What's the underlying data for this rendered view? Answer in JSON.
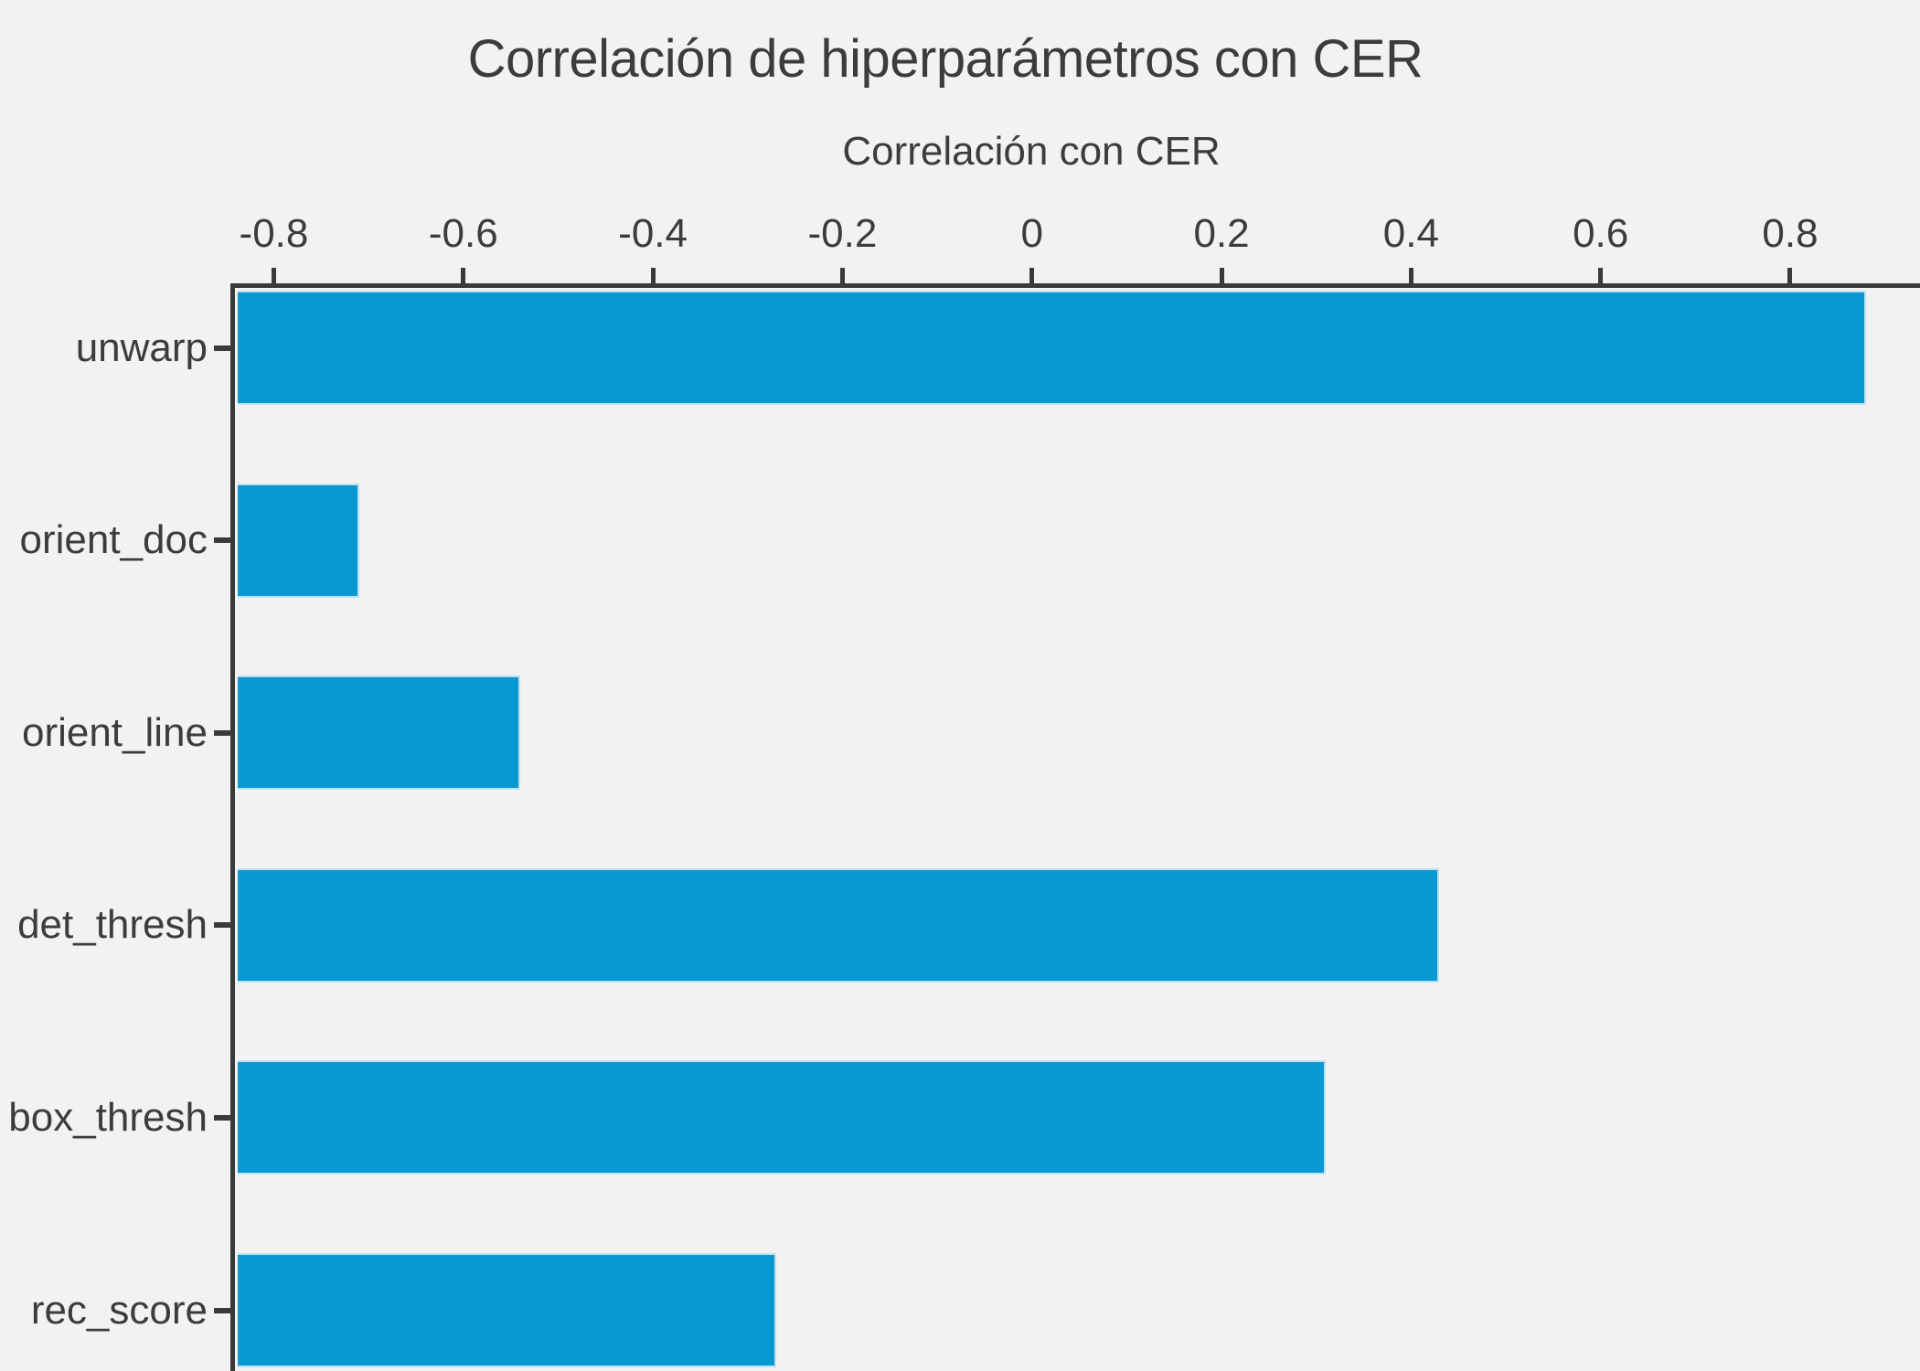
{
  "colors": {
    "background": "#f2f2f2",
    "bar": "#0899d3",
    "bar_edge": "#bee1f2",
    "spine": "#3a3a3a",
    "text": "#3c3c3c"
  },
  "chart_data": {
    "type": "bar",
    "orientation": "horizontal",
    "title": "Correlación de hiperparámetros con CER",
    "xlabel": "Correlación con CER",
    "ylabel": "",
    "categories": [
      "unwarp",
      "orient_doc",
      "orient_line",
      "det_thresh",
      "box_thresh",
      "rec_score"
    ],
    "values": [
      0.88,
      -0.71,
      -0.54,
      0.43,
      0.31,
      -0.27
    ],
    "xlim": [
      -0.84,
      0.937
    ],
    "xticks": [
      -0.8,
      -0.6,
      -0.4,
      -0.2,
      0,
      0.2,
      0.4,
      0.6,
      0.8
    ],
    "xtick_labels": [
      "-0.8",
      "-0.6",
      "-0.4",
      "-0.2",
      "0",
      "0.2",
      "0.4",
      "0.6",
      "0.8"
    ],
    "xaxis_position": "top",
    "bars_start_at": "left_edge",
    "grid": false,
    "legend": false,
    "note_bottom_bar_clipped": true
  }
}
